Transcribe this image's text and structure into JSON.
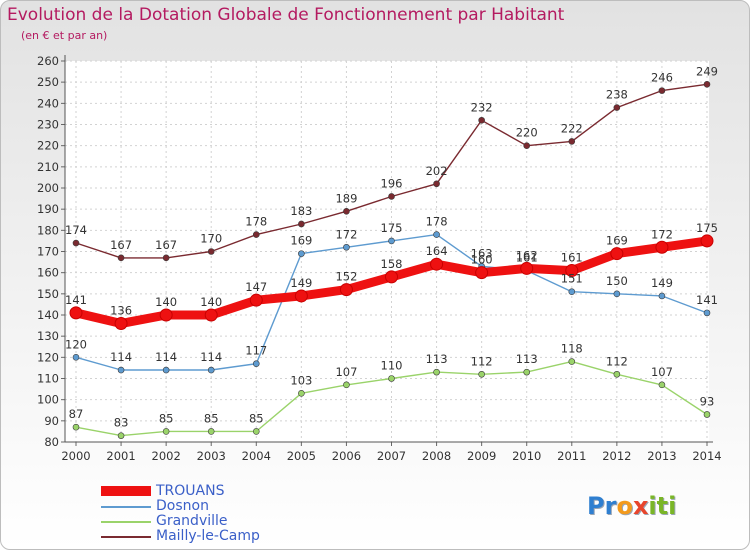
{
  "header": {
    "title": "Evolution de la Dotation Globale de Fonctionnement par Habitant",
    "subtitle": "(en € et par an)"
  },
  "logo": {
    "letters": [
      "P",
      "r",
      "o",
      "x",
      "i",
      "t",
      "i"
    ],
    "colors": [
      "#2f7fd0",
      "#2f7fd0",
      "#f39a1c",
      "#e8452c",
      "#7ab627",
      "#7ab627",
      "#7ab627"
    ]
  },
  "chart_data": {
    "type": "line",
    "x": [
      "2000",
      "2001",
      "2002",
      "2003",
      "2004",
      "2005",
      "2006",
      "2007",
      "2008",
      "2009",
      "2010",
      "2011",
      "2012",
      "2013",
      "2014"
    ],
    "ylim": [
      80,
      260
    ],
    "yticks": [
      "80",
      "90",
      "100",
      "110",
      "120",
      "130",
      "140",
      "150",
      "160",
      "170",
      "180",
      "190",
      "200",
      "210",
      "220",
      "230",
      "240",
      "250",
      "260"
    ],
    "grid": true,
    "legend_position": "bottom-left",
    "series": [
      {
        "name": "TROUANS",
        "color": "#ee1111",
        "emphasis": true,
        "values": [
          141,
          136,
          140,
          140,
          147,
          149,
          152,
          158,
          164,
          160,
          162,
          161,
          169,
          172,
          175
        ]
      },
      {
        "name": "Dosnon",
        "color": "#5e9bd0",
        "emphasis": false,
        "values": [
          120,
          114,
          114,
          114,
          117,
          169,
          172,
          175,
          178,
          163,
          161,
          151,
          150,
          149,
          141
        ]
      },
      {
        "name": "Grandville",
        "color": "#9ad36a",
        "emphasis": false,
        "values": [
          87,
          83,
          85,
          85,
          85,
          103,
          107,
          110,
          113,
          112,
          113,
          118,
          112,
          107,
          93
        ]
      },
      {
        "name": "Mailly-le-Camp",
        "color": "#7a2a30",
        "emphasis": false,
        "values": [
          174,
          167,
          167,
          170,
          178,
          183,
          189,
          196,
          202,
          232,
          220,
          222,
          238,
          246,
          249
        ]
      }
    ]
  }
}
